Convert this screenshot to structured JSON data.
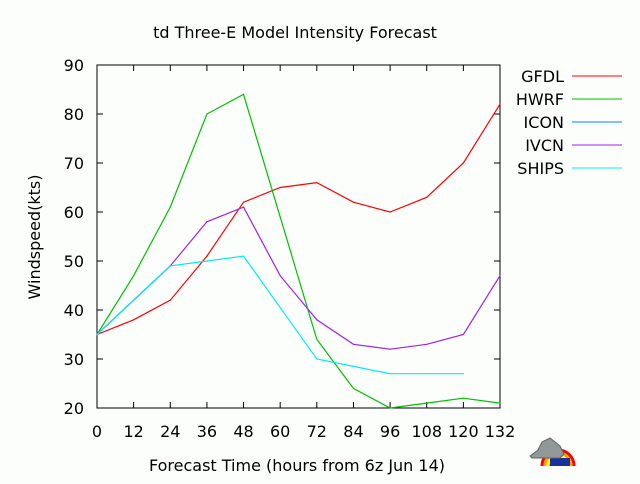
{
  "chart_data": {
    "type": "line",
    "title": "td Three-E Model Intensity Forecast",
    "xlabel": "Forecast Time  (hours from 6z Jun 14)",
    "ylabel": "Windspeed(kts)",
    "xlim": [
      0,
      132
    ],
    "ylim": [
      20,
      90
    ],
    "xticks": [
      0,
      12,
      24,
      36,
      48,
      60,
      72,
      84,
      96,
      108,
      120,
      132
    ],
    "yticks": [
      20,
      30,
      40,
      50,
      60,
      70,
      80,
      90
    ],
    "legend_position": "right",
    "series": [
      {
        "name": "GFDL",
        "color": "#ff0000",
        "x": [
          0,
          12,
          24,
          36,
          48,
          60,
          72,
          84,
          96,
          108,
          120,
          132
        ],
        "values": [
          35,
          38,
          42,
          51,
          62,
          65,
          66,
          62,
          60,
          63,
          70,
          82
        ]
      },
      {
        "name": "HWRF",
        "color": "#00c000",
        "x": [
          0,
          12,
          24,
          36,
          48,
          60,
          72,
          84,
          96,
          108,
          120,
          132
        ],
        "values": [
          35,
          47,
          61,
          80,
          84,
          59,
          34,
          24,
          20,
          21,
          22,
          21
        ]
      },
      {
        "name": "ICON",
        "color": "#0080ff",
        "x": [
          0,
          12,
          24
        ],
        "values": [
          35,
          42,
          49
        ]
      },
      {
        "name": "IVCN",
        "color": "#a020f0",
        "x": [
          0,
          12,
          24,
          36,
          48,
          60,
          72,
          84,
          96,
          108,
          120,
          132
        ],
        "values": [
          35,
          42,
          49,
          58,
          61,
          47,
          38,
          33,
          32,
          33,
          35,
          47
        ]
      },
      {
        "name": "SHIPS",
        "color": "#00eeee",
        "x": [
          0,
          12,
          24,
          36,
          48,
          60,
          72,
          84,
          96,
          108,
          120
        ],
        "values": [
          35,
          42,
          49,
          50,
          51,
          40.5,
          30,
          28.5,
          27,
          27,
          27
        ]
      }
    ]
  }
}
